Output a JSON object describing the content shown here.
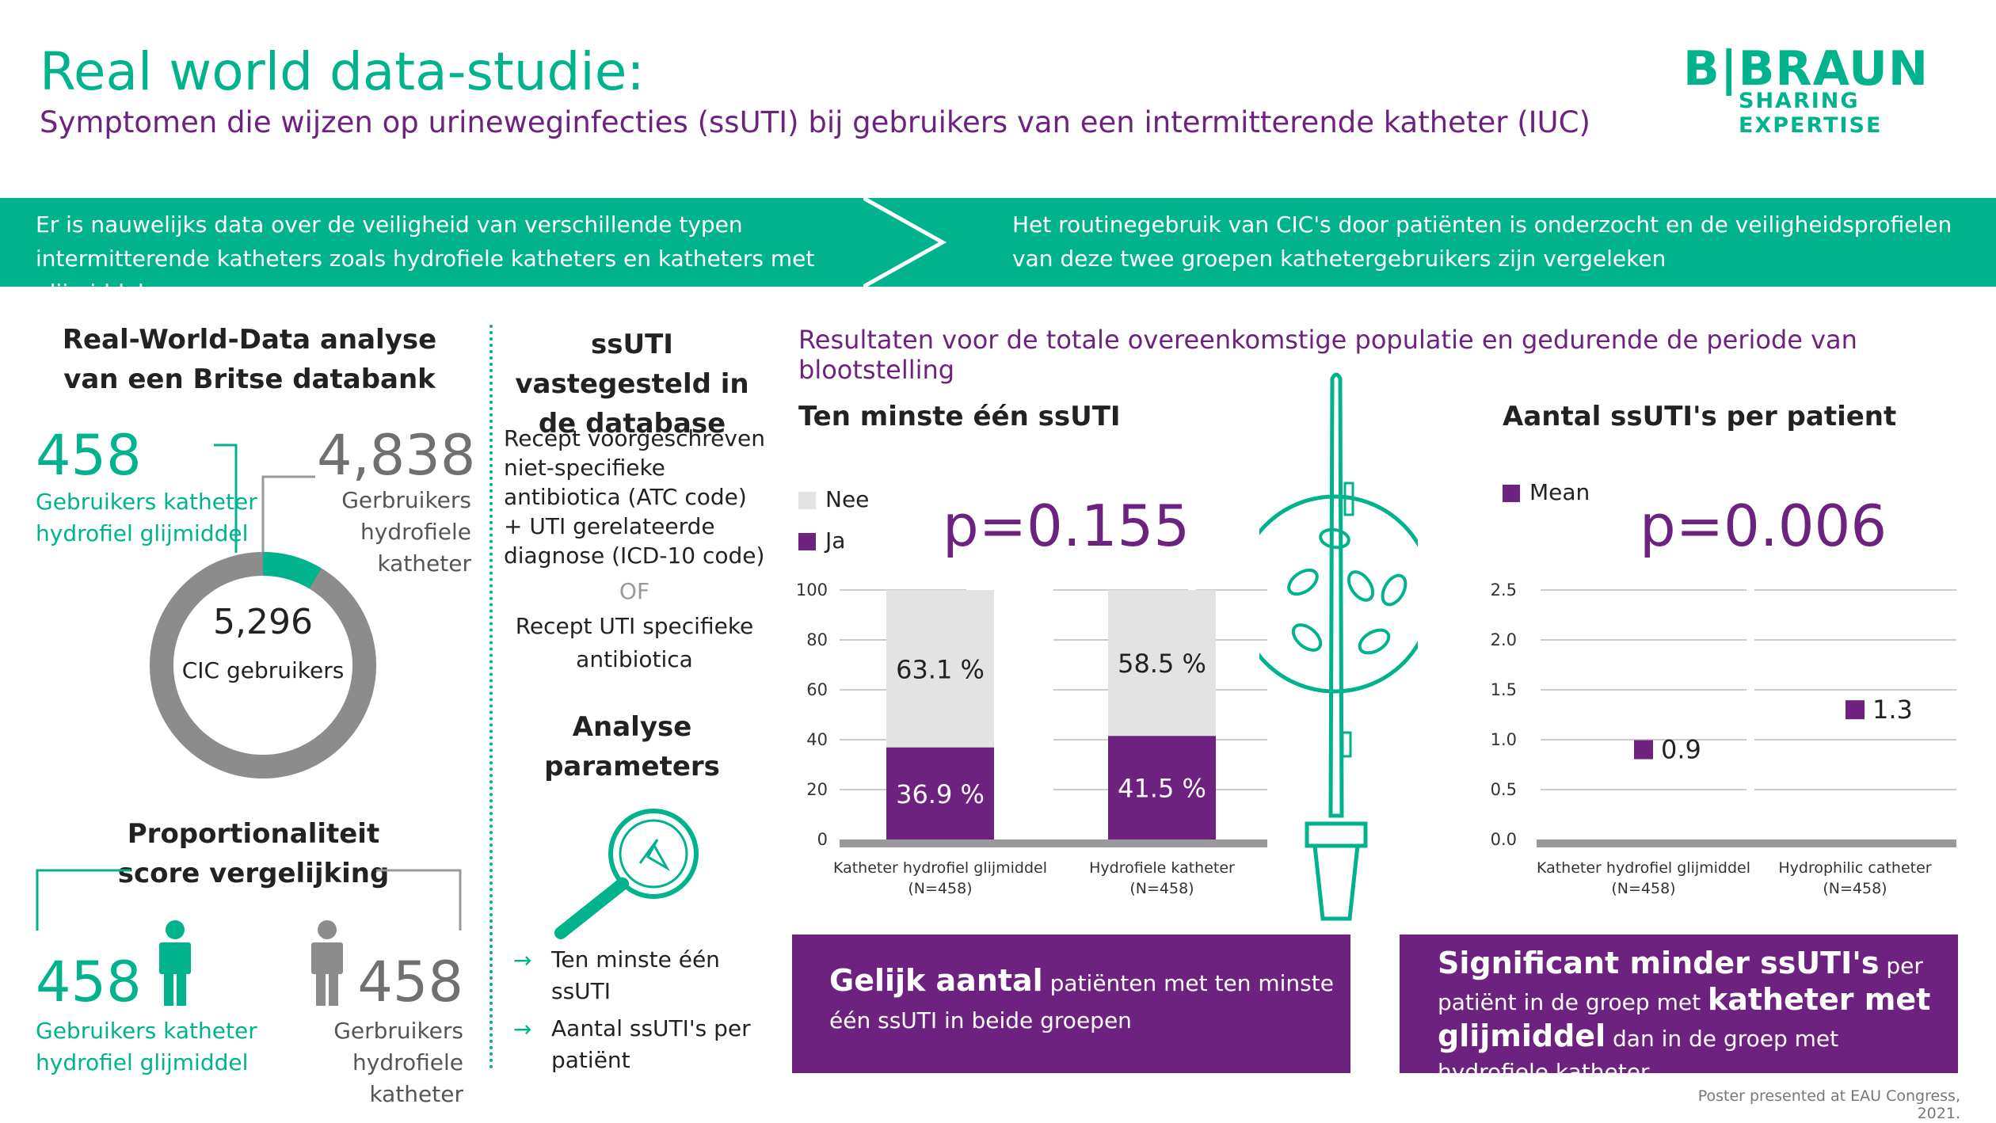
{
  "header": {
    "title": "Real world data-studie:",
    "subtitle": "Symptomen die wijzen op urineweginfecties (ssUTI) bij gebruikers van een intermitterende katheter (IUC)",
    "logo_name": "B|BRAUN",
    "logo_tagline": "SHARING EXPERTISE"
  },
  "banner": {
    "left_text": "Er is nauwelijks data over de veiligheid van verschillende typen intermitterende katheters zoals hydrofiele katheters en katheters met glijmiddel.",
    "right_text": "Het routinegebruik van CIC's door patiënten is onderzocht en de veiligheidsprofielen van deze twee groepen kathetergebruikers zijn vergeleken"
  },
  "left": {
    "rwd_heading": "Real-World-Data analyse van een Britse databank",
    "hydro_gli_count": "458",
    "hydro_gli_label": "Gebruikers katheter hydrofiel glijmiddel",
    "hydro_count": "4,838",
    "hydro_label": "Gerbruikers hydrofiele katheter",
    "total_count": "5,296",
    "total_label": "CIC gebruikers",
    "donut_share_glijmiddel": 0.0865,
    "prop_heading": "Proportionaliteit score vergelijking",
    "prop_gli_count": "458",
    "prop_gli_label": "Gebruikers katheter hydrofiel glijmiddel",
    "prop_hydro_count": "458",
    "prop_hydro_label": "Gerbruikers hydrofiele katheter"
  },
  "middle": {
    "ssuti_heading": "ssUTI vastegesteld in de database",
    "definition": "Recept voorgeschreven niet-specifieke antibiotica (ATC code) + UTI gerelateerde diagnose (ICD-10 code)",
    "or_word": "OF",
    "definition2": "Recept UTI specifieke antibiotica",
    "analyse_heading": "Analyse parameters",
    "param_arrow": "→",
    "param1": "Ten minste één ssUTI",
    "param2": "Aantal ssUTI's per patiënt"
  },
  "results": {
    "heading": "Resultaten voor de totale overeenkomstige populatie en gedurende de periode van blootstelling",
    "chart1_title": "Ten minste één ssUTI",
    "chart2_title": "Aantal ssUTI's per patient",
    "legend_nee": "Nee",
    "legend_ja": "Ja",
    "legend_mean": "Mean",
    "p1": "p=0.155",
    "p2": "p=0.006"
  },
  "colors": {
    "green": "#00b38c",
    "purple": "#6e2280",
    "light_gray": "#e3e3e3",
    "mid_gray": "#8c8c8c"
  },
  "chart_data": [
    {
      "type": "bar",
      "stacked": true,
      "title": "Ten minste één ssUTI",
      "categories": [
        "Katheter hydrofiel glijmiddel",
        "Hydrofiele katheter"
      ],
      "category_n": [
        "(N=458)",
        "(N=458)"
      ],
      "series": [
        {
          "name": "Ja",
          "values": [
            36.9,
            41.5
          ],
          "labels": [
            "36.9 %",
            "41.5 %"
          ]
        },
        {
          "name": "Nee",
          "values": [
            63.1,
            58.5
          ],
          "labels": [
            "63.1 %",
            "58.5 %"
          ]
        }
      ],
      "ylim": [
        0,
        100
      ],
      "yticks": [
        "0",
        "20",
        "40",
        "60",
        "80",
        "100"
      ],
      "grid": true,
      "legend": "top-left"
    },
    {
      "type": "scatter",
      "title": "Aantal ssUTI's per patient",
      "categories": [
        "Katheter hydrofiel glijmiddel",
        "Hydrophilic catheter"
      ],
      "category_n": [
        "(N=458)",
        "(N=458)"
      ],
      "series": [
        {
          "name": "Mean",
          "values": [
            0.9,
            1.3
          ],
          "labels": [
            "0.9",
            "1.3"
          ]
        }
      ],
      "ylim": [
        0,
        2.5
      ],
      "yticks": [
        "0.0",
        "0.5",
        "1.0",
        "1.5",
        "2.0",
        "2.5"
      ],
      "grid": true,
      "legend": "top-left"
    }
  ],
  "boxes": {
    "box1_highlight": "Gelijk aantal",
    "box1_rest": "patiënten met ten minste één ssUTI in beide groepen",
    "box2_highlight": "Significant minder ssUTI's",
    "box2_mid": "per patiënt in de groep met",
    "box2_highlight2": "katheter met glijmiddel",
    "box2_end": "dan in de groep met hydrofiele katheter."
  },
  "footer": "Poster presented at EAU Congress, 2021."
}
